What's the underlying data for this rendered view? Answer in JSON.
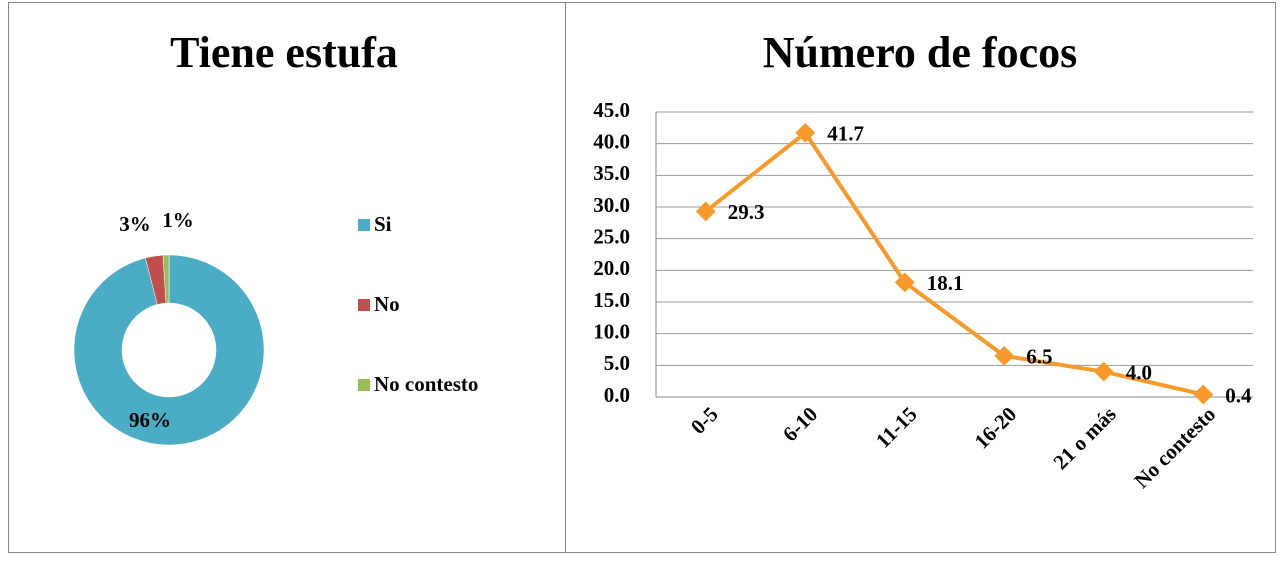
{
  "chart_data": [
    {
      "type": "donut",
      "title": "Tiene estufa",
      "categories": [
        "Si",
        "No",
        "No contesto"
      ],
      "values": [
        96,
        3,
        1
      ],
      "value_labels": [
        "96%",
        "3%",
        "1%"
      ],
      "colors": [
        "#4bacc6",
        "#c0504d",
        "#9bbb59"
      ],
      "legend": "right"
    },
    {
      "type": "line",
      "title": "Número de focos",
      "categories": [
        "0-5",
        "6-10",
        "11-15",
        "16-20",
        "21 o más",
        "No contesto"
      ],
      "values": [
        29.3,
        41.7,
        18.1,
        6.5,
        4.0,
        0.4
      ],
      "value_labels": [
        "29.3",
        "41.7",
        "18.1",
        "6.5",
        "4.0",
        "0.4"
      ],
      "color": "#f79a2a",
      "ylim": [
        0,
        45
      ],
      "yticks": [
        {
          "value": 0,
          "label": "0.0"
        },
        {
          "value": 5,
          "label": "5.0"
        },
        {
          "value": 10,
          "label": "10.0"
        },
        {
          "value": 15,
          "label": "15.0"
        },
        {
          "value": 20,
          "label": "20.0"
        },
        {
          "value": 25,
          "label": "25.0"
        },
        {
          "value": 30,
          "label": "30.0"
        },
        {
          "value": 35,
          "label": "35.0"
        },
        {
          "value": 40,
          "label": "40.0"
        },
        {
          "value": 45,
          "label": "45.0"
        }
      ],
      "grid": true
    }
  ]
}
